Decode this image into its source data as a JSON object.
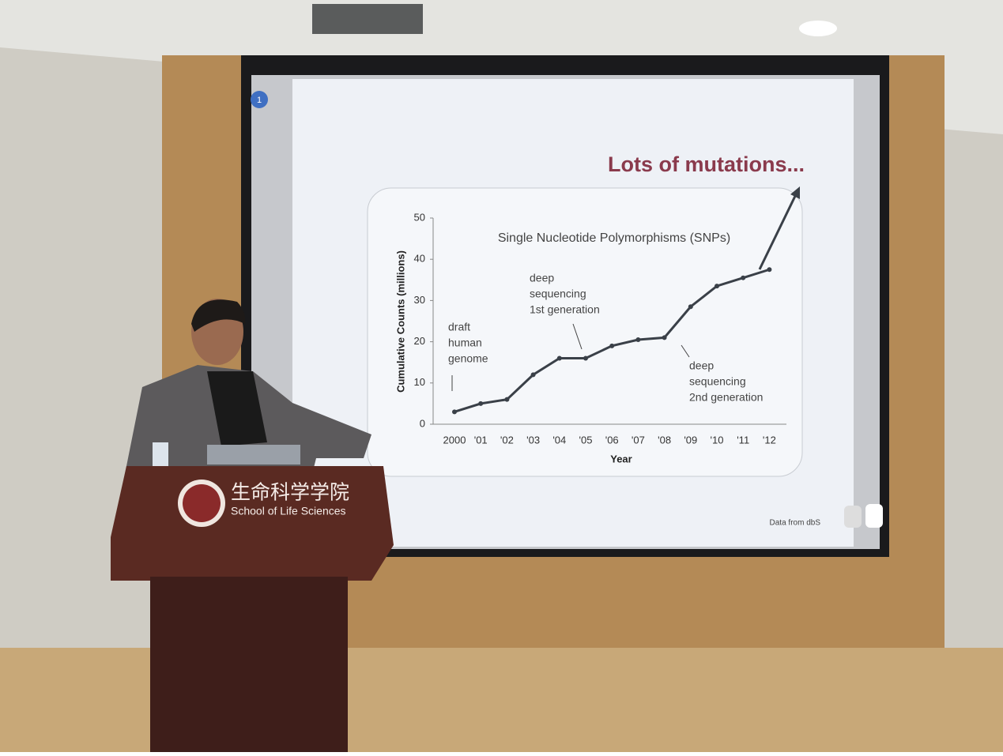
{
  "slide": {
    "number": "1",
    "title": "Lots of mutations...",
    "source": "Data from dbS"
  },
  "chart_data": {
    "type": "line",
    "title": "Single Nucleotide Polymorphisms (SNPs)",
    "x_label": "Year",
    "y_label": "Cumulative Counts (millions)",
    "categories": [
      "2000",
      "'01",
      "'02",
      "'03",
      "'04",
      "'05",
      "'06",
      "'07",
      "'08",
      "'09",
      "'10",
      "'11",
      "'12"
    ],
    "values": [
      3,
      5,
      6,
      12,
      16,
      16,
      19,
      20.5,
      21,
      28.5,
      33.5,
      35.5,
      37.5
    ],
    "color": "#3a4048",
    "ylim": [
      0,
      50
    ],
    "yticks": [
      0,
      10,
      20,
      30,
      40,
      50
    ],
    "annotations": [
      {
        "lines": [
          "draft",
          "human",
          "genome"
        ]
      },
      {
        "lines": [
          "deep",
          "sequencing",
          "1st generation"
        ]
      },
      {
        "lines": [
          "deep",
          "sequencing",
          "2nd generation"
        ]
      }
    ]
  },
  "podium": {
    "chinese": "生命科学学院",
    "english": "School of Life Sciences"
  }
}
